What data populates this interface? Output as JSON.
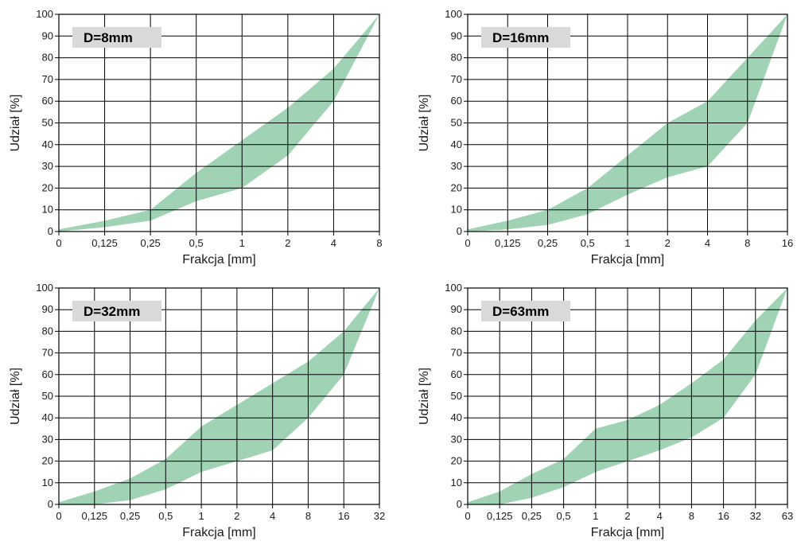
{
  "figure": {
    "band_color": "#9fd3b4",
    "grid_color": "#000000",
    "tag_color": "#d9d9d9"
  },
  "chart_data": [
    {
      "type": "area",
      "tag": "D=8mm",
      "xlabel": "Frakcja [mm]",
      "ylabel": "Udział [%]",
      "ylim": [
        0,
        100
      ],
      "yticks": [
        "0",
        "10",
        "20",
        "30",
        "40",
        "50",
        "60",
        "70",
        "80",
        "90",
        "100"
      ],
      "x": [
        "0",
        "0,125",
        "0,25",
        "0,5",
        "1",
        "2",
        "4",
        "8"
      ],
      "grid": true,
      "series": [
        {
          "values": [
            1,
            5,
            10,
            27,
            42,
            57,
            75,
            100
          ]
        },
        {
          "values": [
            0,
            2,
            5,
            14,
            20,
            35,
            60,
            100
          ]
        }
      ]
    },
    {
      "type": "area",
      "tag": "D=16mm",
      "xlabel": "Frakcja [mm]",
      "ylabel": "Udział [%]",
      "ylim": [
        0,
        100
      ],
      "yticks": [
        "0",
        "10",
        "20",
        "30",
        "40",
        "50",
        "60",
        "70",
        "80",
        "90",
        "100"
      ],
      "x": [
        "0",
        "0,125",
        "0,25",
        "0,5",
        "1",
        "2",
        "4",
        "8",
        "16"
      ],
      "grid": true,
      "series": [
        {
          "values": [
            1,
            5,
            10,
            20,
            35,
            50,
            60,
            80,
            100
          ]
        },
        {
          "values": [
            0,
            1,
            3,
            8,
            17,
            25,
            30,
            50,
            100
          ]
        }
      ]
    },
    {
      "type": "area",
      "tag": "D=32mm",
      "xlabel": "Frakcja [mm]",
      "ylabel": "Udział [%]",
      "ylim": [
        0,
        100
      ],
      "yticks": [
        "0",
        "10",
        "20",
        "30",
        "40",
        "50",
        "60",
        "70",
        "80",
        "90",
        "100"
      ],
      "x": [
        "0",
        "0,125",
        "0,25",
        "0,5",
        "1",
        "2",
        "4",
        "8",
        "16",
        "32"
      ],
      "grid": true,
      "series": [
        {
          "values": [
            1,
            6,
            12,
            21,
            36,
            46,
            56,
            66,
            80,
            100
          ]
        },
        {
          "values": [
            0,
            0,
            2,
            7,
            15,
            20,
            25,
            40,
            60,
            100
          ]
        }
      ]
    },
    {
      "type": "area",
      "tag": "D=63mm",
      "xlabel": "Frakcja [mm]",
      "ylabel": "Udział [%]",
      "ylim": [
        0,
        100
      ],
      "yticks": [
        "0",
        "10",
        "20",
        "30",
        "40",
        "50",
        "60",
        "70",
        "80",
        "90",
        "100"
      ],
      "x": [
        "0",
        "0,125",
        "0,25",
        "0,5",
        "1",
        "2",
        "4",
        "8",
        "16",
        "32",
        "63"
      ],
      "grid": true,
      "series": [
        {
          "values": [
            1,
            6,
            14,
            21,
            35,
            39,
            46,
            56,
            67,
            85,
            100
          ]
        },
        {
          "values": [
            0,
            0,
            3,
            8,
            15,
            20,
            25,
            31,
            40,
            60,
            100
          ]
        }
      ]
    }
  ]
}
